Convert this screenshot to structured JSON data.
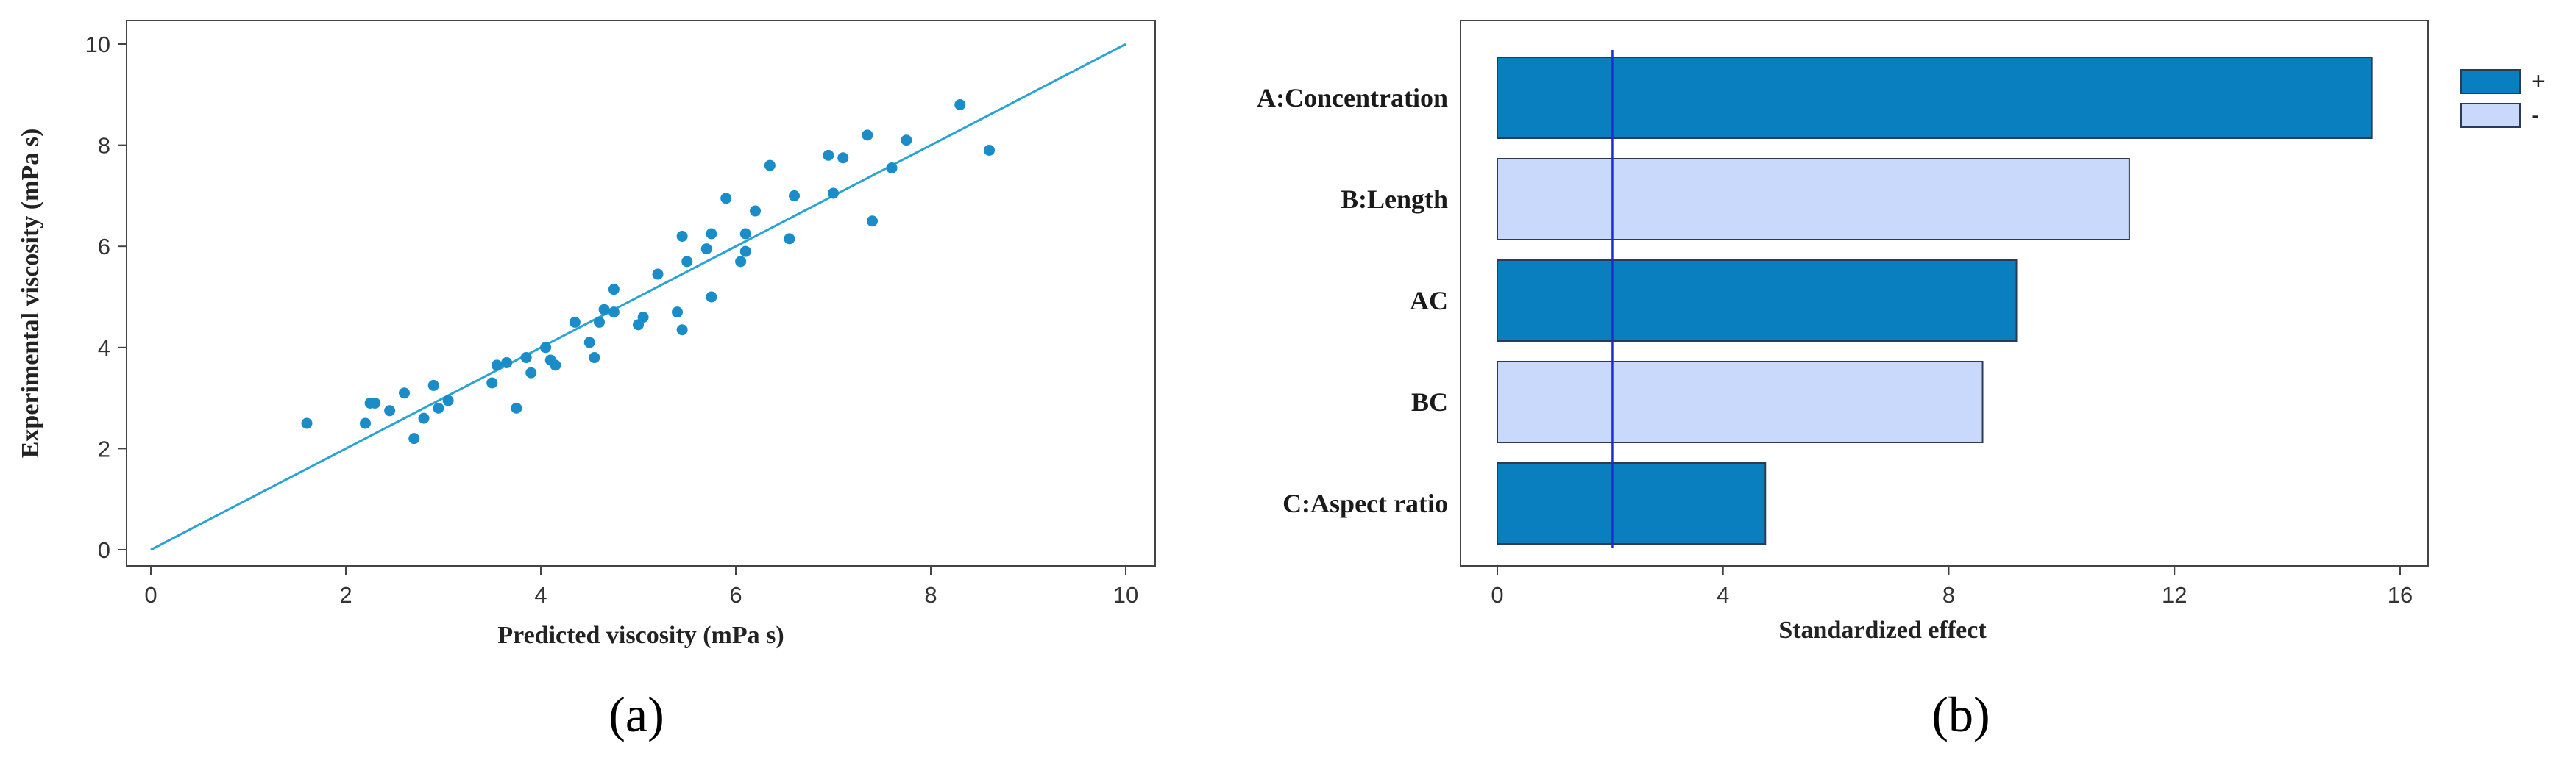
{
  "colors": {
    "point": "#1a8cc7",
    "fit_line": "#29a3d1",
    "bar_positive": "#0a7fc0",
    "bar_negative": "#c9d9fb",
    "bar_stroke": "#2b3a55",
    "reference_line": "#1e2ad6",
    "axis": "#444444"
  },
  "chart_data": [
    {
      "type": "scatter",
      "panel_label": "(a)",
      "title": "",
      "xlabel": "Predicted viscosity (mPa s)",
      "ylabel": "Experimental viscosity (mPa s)",
      "xlim": [
        0,
        10
      ],
      "ylim": [
        0,
        10
      ],
      "x_ticks": [
        0,
        2,
        4,
        6,
        8,
        10
      ],
      "y_ticks": [
        0,
        2,
        4,
        6,
        8,
        10
      ],
      "fit_line": {
        "x": [
          0,
          10
        ],
        "y": [
          0,
          10
        ]
      },
      "points": [
        {
          "x": 1.6,
          "y": 2.5
        },
        {
          "x": 2.2,
          "y": 2.5
        },
        {
          "x": 2.25,
          "y": 2.9
        },
        {
          "x": 2.3,
          "y": 2.9
        },
        {
          "x": 2.45,
          "y": 2.75
        },
        {
          "x": 2.6,
          "y": 3.1
        },
        {
          "x": 2.7,
          "y": 2.2
        },
        {
          "x": 2.8,
          "y": 2.6
        },
        {
          "x": 2.9,
          "y": 3.25
        },
        {
          "x": 2.95,
          "y": 2.8
        },
        {
          "x": 3.05,
          "y": 2.95
        },
        {
          "x": 3.5,
          "y": 3.3
        },
        {
          "x": 3.55,
          "y": 3.65
        },
        {
          "x": 3.65,
          "y": 3.7
        },
        {
          "x": 3.75,
          "y": 2.8
        },
        {
          "x": 3.85,
          "y": 3.8
        },
        {
          "x": 3.9,
          "y": 3.5
        },
        {
          "x": 4.05,
          "y": 4.0
        },
        {
          "x": 4.1,
          "y": 3.75
        },
        {
          "x": 4.15,
          "y": 3.65
        },
        {
          "x": 4.35,
          "y": 4.5
        },
        {
          "x": 4.5,
          "y": 4.1
        },
        {
          "x": 4.55,
          "y": 3.8
        },
        {
          "x": 4.6,
          "y": 4.5
        },
        {
          "x": 4.65,
          "y": 4.75
        },
        {
          "x": 4.75,
          "y": 4.7
        },
        {
          "x": 4.75,
          "y": 5.15
        },
        {
          "x": 5.0,
          "y": 4.45
        },
        {
          "x": 5.05,
          "y": 4.6
        },
        {
          "x": 5.2,
          "y": 5.45
        },
        {
          "x": 5.4,
          "y": 4.7
        },
        {
          "x": 5.45,
          "y": 4.35
        },
        {
          "x": 5.45,
          "y": 6.2
        },
        {
          "x": 5.5,
          "y": 5.7
        },
        {
          "x": 5.7,
          "y": 5.95
        },
        {
          "x": 5.75,
          "y": 6.25
        },
        {
          "x": 5.75,
          "y": 5.0
        },
        {
          "x": 5.9,
          "y": 6.95
        },
        {
          "x": 6.05,
          "y": 5.7
        },
        {
          "x": 6.1,
          "y": 5.9
        },
        {
          "x": 6.1,
          "y": 6.25
        },
        {
          "x": 6.2,
          "y": 6.7
        },
        {
          "x": 6.35,
          "y": 7.6
        },
        {
          "x": 6.55,
          "y": 6.15
        },
        {
          "x": 6.6,
          "y": 7.0
        },
        {
          "x": 6.95,
          "y": 7.8
        },
        {
          "x": 7.0,
          "y": 7.05
        },
        {
          "x": 7.1,
          "y": 7.75
        },
        {
          "x": 7.35,
          "y": 8.2
        },
        {
          "x": 7.4,
          "y": 6.5
        },
        {
          "x": 7.6,
          "y": 7.55
        },
        {
          "x": 7.75,
          "y": 8.1
        },
        {
          "x": 8.3,
          "y": 8.8
        },
        {
          "x": 8.6,
          "y": 7.9
        }
      ]
    },
    {
      "type": "bar",
      "orientation": "horizontal",
      "panel_label": "(b)",
      "title": "",
      "xlabel": "Standardized effect",
      "ylabel": "",
      "xlim": [
        0,
        16
      ],
      "x_ticks": [
        0,
        4,
        8,
        12,
        16
      ],
      "reference_line": 2.04,
      "categories": [
        "A:Concentration",
        "B:Length",
        "AC",
        "BC",
        "C:Aspect ratio"
      ],
      "values": [
        15.5,
        11.2,
        9.2,
        8.6,
        4.75
      ],
      "signs": [
        "+",
        "-",
        "+",
        "-",
        "+"
      ],
      "legend": [
        {
          "label": "+",
          "sign": "+"
        },
        {
          "label": "-",
          "sign": "-"
        }
      ],
      "legend_position": "top-right"
    }
  ]
}
